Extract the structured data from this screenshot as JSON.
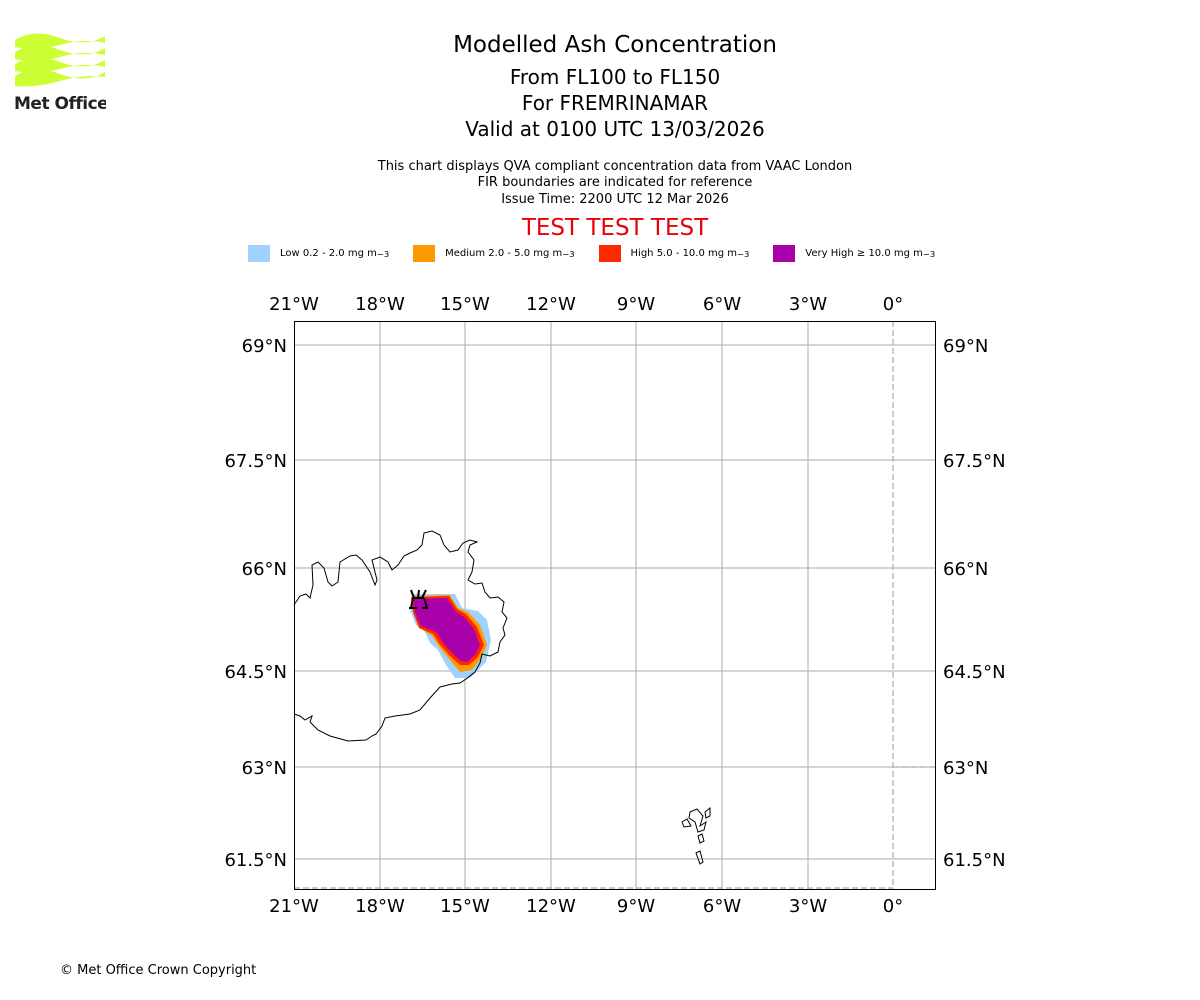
{
  "logo": {
    "text": "Met Office",
    "color": "#ccff33"
  },
  "title": {
    "main": "Modelled Ash Concentration",
    "levels": "From FL100 to FL150",
    "region": "For FREMRINAMAR",
    "valid": "Valid at 0100 UTC 13/03/2026"
  },
  "subtitle": {
    "line1": "This chart displays QVA compliant concentration data from VAAC London",
    "line2": "FIR boundaries are indicated for reference",
    "line3": "Issue Time: 2200 UTC 12 Mar 2026"
  },
  "test_banner": "TEST TEST TEST",
  "legend": [
    {
      "label": "Low 0.2 - 2.0 mg m",
      "sup": "−3",
      "color": "#a0d2ff"
    },
    {
      "label": "Medium 2.0 - 5.0 mg m",
      "sup": "−3",
      "color": "#ff9900"
    },
    {
      "label": "High 5.0 - 10.0 mg m",
      "sup": "−3",
      "color": "#ff2800"
    },
    {
      "label": "Very High ≥ 10.0 mg m",
      "sup": "−3",
      "color": "#aa00aa"
    }
  ],
  "map": {
    "lon_ticks": [
      "21°W",
      "18°W",
      "15°W",
      "12°W",
      "9°W",
      "6°W",
      "3°W",
      "0°"
    ],
    "lat_ticks": [
      "69°N",
      "67.5°N",
      "66°N",
      "64.5°N",
      "63°N",
      "61.5°N"
    ],
    "volcano": "Fremrinamar"
  },
  "copyright": "© Met Office Crown Copyright"
}
